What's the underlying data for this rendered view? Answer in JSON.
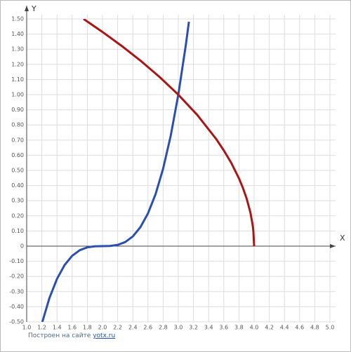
{
  "chart_data": {
    "type": "line",
    "x_label": "X",
    "y_label": "Y",
    "xlim": [
      1.0,
      5.0
    ],
    "ylim": [
      -0.5,
      1.5
    ],
    "grid": true,
    "xticks": [
      {
        "value": 1.0,
        "label": "1.0"
      },
      1.2,
      1.4,
      1.6,
      1.8,
      {
        "value": 2.0,
        "label": "2.0"
      },
      2.2,
      2.4,
      2.6,
      2.8,
      {
        "value": 3.0,
        "label": "3.0"
      },
      3.2,
      3.4,
      3.6,
      3.8,
      {
        "value": 4.0,
        "label": "4.0"
      },
      4.2,
      4.4,
      4.6,
      4.8,
      {
        "value": 5.0,
        "label": "5.0"
      }
    ],
    "yticks": [
      {
        "value": -0.5,
        "label": "-0.50"
      },
      {
        "value": -0.4,
        "label": "-0.40"
      },
      {
        "value": -0.3,
        "label": "-0.30"
      },
      {
        "value": -0.2,
        "label": "-0.20"
      },
      {
        "value": -0.1,
        "label": "-0.10"
      },
      0,
      {
        "value": 0.1,
        "label": "0.10"
      },
      {
        "value": 0.2,
        "label": "0.20"
      },
      {
        "value": 0.3,
        "label": "0.30"
      },
      {
        "value": 0.4,
        "label": "0.40"
      },
      {
        "value": 0.5,
        "label": "0.50"
      },
      {
        "value": 0.6,
        "label": "0.60"
      },
      {
        "value": 0.7,
        "label": "0.70"
      },
      {
        "value": 0.8,
        "label": "0.80"
      },
      {
        "value": 0.9,
        "label": "0.90"
      },
      {
        "value": 1.0,
        "label": "1.00"
      },
      {
        "value": 1.1,
        "label": "1.10"
      },
      {
        "value": 1.2,
        "label": "1.20"
      },
      {
        "value": 1.3,
        "label": "1.30"
      },
      {
        "value": 1.4,
        "label": "1.40"
      },
      {
        "value": 1.5,
        "label": "1.50"
      }
    ],
    "series": [
      {
        "color": "#2a4fb0",
        "x": [
          1.2,
          1.3,
          1.4,
          1.5,
          1.6,
          1.7,
          1.8,
          1.9,
          2.0,
          2.1,
          2.2,
          2.3,
          2.4,
          2.5,
          2.6,
          2.7,
          2.8,
          2.9,
          3.0,
          3.1,
          3.14
        ],
        "values": [
          -0.512,
          -0.343,
          -0.216,
          -0.125,
          -0.064,
          -0.027,
          -0.008,
          -0.001,
          0,
          0.001,
          0.008,
          0.027,
          0.064,
          0.125,
          0.216,
          0.343,
          0.512,
          0.729,
          1,
          1.331,
          1.482
        ]
      },
      {
        "color": "#a81616",
        "x": [
          1.75,
          2.0,
          2.25,
          2.5,
          2.75,
          3.0,
          3.25,
          3.5,
          3.6,
          3.7,
          3.8,
          3.85,
          3.9,
          3.95,
          3.98,
          3.99,
          4.0
        ],
        "values": [
          1.5,
          1.414,
          1.323,
          1.225,
          1.118,
          1,
          0.866,
          0.707,
          0.632,
          0.548,
          0.447,
          0.387,
          0.316,
          0.224,
          0.141,
          0.1,
          0
        ]
      }
    ]
  },
  "footer": {
    "text": "Построен на сайте",
    "link": "yotx.ru"
  }
}
